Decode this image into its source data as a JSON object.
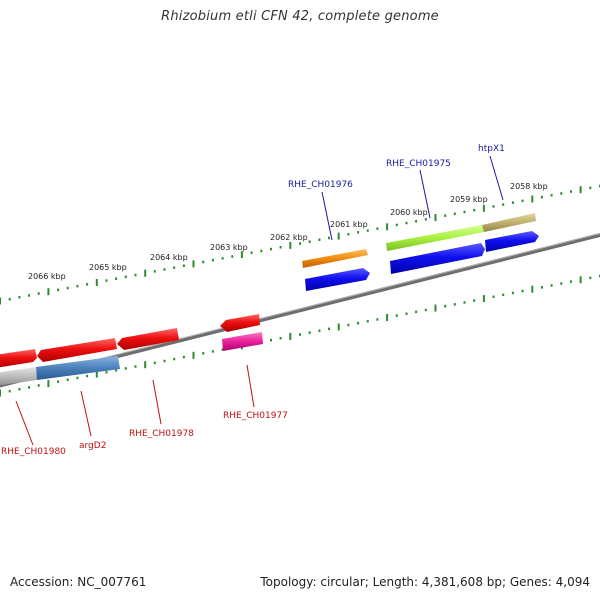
{
  "title": "Rhizobium etli CFN 42, complete genome",
  "footer": {
    "accession": "Accession: NC_007761",
    "stats": "Topology: circular; Length: 4,381,608 bp; Genes: 4,094"
  },
  "kbp_labels": [
    "2066 kbp",
    "2065 kbp",
    "2064 kbp",
    "2063 kbp",
    "2062 kbp",
    "2061 kbp",
    "2060 kbp",
    "2059 kbp",
    "2058 kbp"
  ],
  "gene_labels": {
    "htpX1": "htpX1",
    "rhe_ch01975": "RHE_CH01975",
    "rhe_ch01976": "RHE_CH01976",
    "rhe_ch01977": "RHE_CH01977",
    "rhe_ch01978": "RHE_CH01978",
    "argD2": "argD2",
    "rhe_ch01980": "RHE_CH01980"
  },
  "colors": {
    "backbone": "#7a7a7a",
    "ticks": "#2e8b2e",
    "forward_gene": "#1010e8",
    "reverse_gene": "#e81010",
    "forward_label": "#1a1aa0",
    "reverse_label": "#c01010"
  }
}
